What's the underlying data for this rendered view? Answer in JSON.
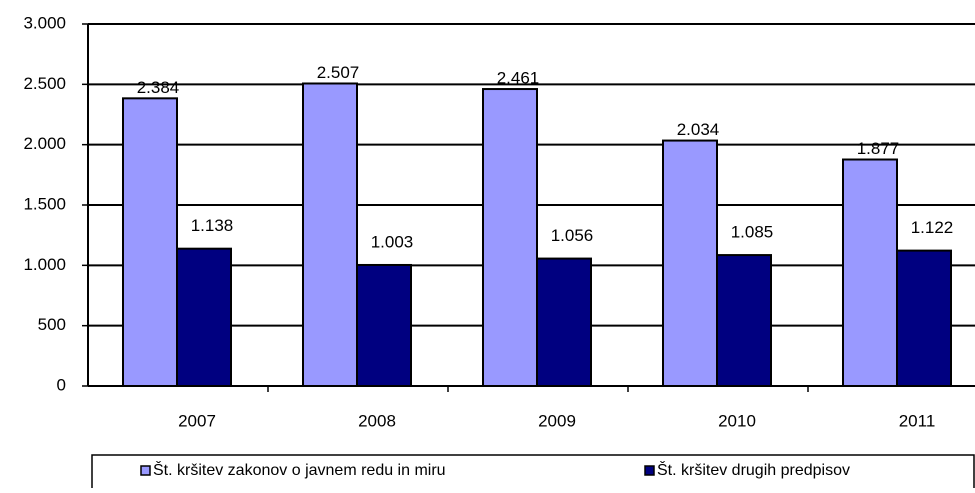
{
  "chart_data": {
    "type": "bar",
    "categories": [
      "2007",
      "2008",
      "2009",
      "2010",
      "2011"
    ],
    "series": [
      {
        "name": "Št. kršitev zakonov o javnem redu in miru",
        "color": "#9999ff",
        "values": [
          2384,
          2507,
          2461,
          2034,
          1877
        ],
        "value_labels": [
          "2.384",
          "2.507",
          "2.461",
          "2.034",
          "1.877"
        ]
      },
      {
        "name": "Št. kršitev drugih predpisov",
        "color": "#000080",
        "values": [
          1138,
          1003,
          1056,
          1085,
          1122
        ],
        "value_labels": [
          "1.138",
          "1.003",
          "1.056",
          "1.085",
          "1.122"
        ]
      }
    ],
    "ylim": [
      0,
      3000
    ],
    "yticks": [
      0,
      500,
      {
        "value": 1000,
        "label": "1.000"
      },
      {
        "value": 1500,
        "label": "1.500"
      },
      {
        "value": 2000,
        "label": "2.000"
      },
      {
        "value": 2500,
        "label": "2.500"
      },
      {
        "value": 3000,
        "label": "3.000"
      }
    ],
    "grid": true,
    "legend": "bottom"
  }
}
